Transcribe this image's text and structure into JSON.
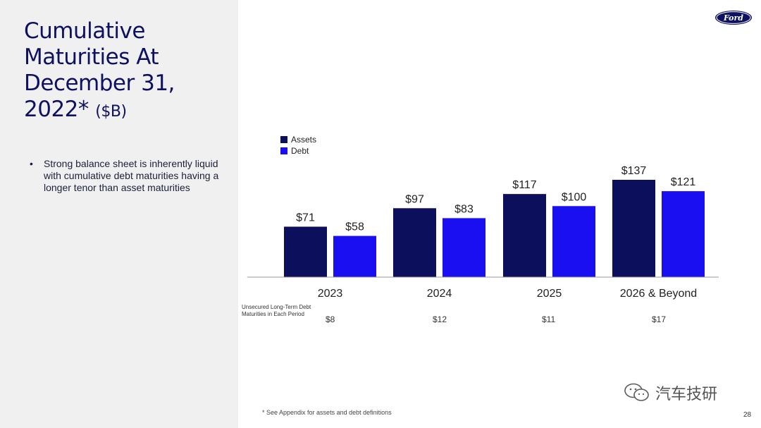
{
  "title": {
    "main": "Cumulative Maturities At December 31, 2022*",
    "unit": "($B)"
  },
  "bullets": [
    "Strong balance sheet is inherently liquid with cumulative debt maturities having a longer tenor than asset maturities"
  ],
  "logo_text": "Ford",
  "chart_data": {
    "type": "bar",
    "categories": [
      "2023",
      "2024",
      "2025",
      "2026 & Beyond"
    ],
    "series": [
      {
        "name": "Assets",
        "values": [
          71,
          97,
          117,
          137
        ],
        "labels": [
          "$71",
          "$97",
          "$117",
          "$137"
        ],
        "color": "#0b0f5c"
      },
      {
        "name": "Debt",
        "values": [
          58,
          83,
          100,
          121
        ],
        "labels": [
          "$58",
          "$83",
          "$100",
          "$121"
        ],
        "color": "#1a0ff0"
      }
    ],
    "ylim": [
      0,
      150
    ],
    "legend_position": "top-left",
    "grid": false
  },
  "table": {
    "label": "Unsecured Long-Term Debt Maturities in Each Period",
    "values": [
      "$8",
      "$12",
      "$11",
      "$17"
    ]
  },
  "footnote": "* See Appendix for assets and debt definitions",
  "watermark": "汽车技研",
  "page_number": "28"
}
